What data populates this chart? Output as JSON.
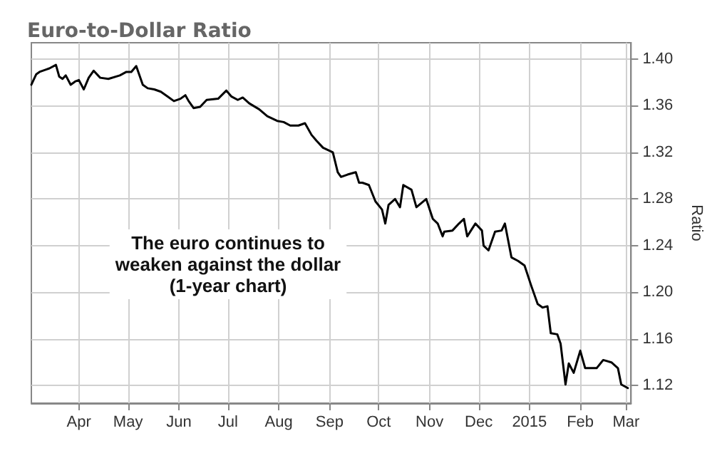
{
  "chart_data": {
    "type": "line",
    "title": "Euro-to-Dollar Ratio",
    "ylabel": "Ratio",
    "annotations": [
      "The euro continues to\nweaken against the dollar\n(1-year chart)"
    ],
    "x": [
      "2014-03-03",
      "2014-03-06",
      "2014-03-08",
      "2014-03-12",
      "2014-03-14",
      "2014-03-18",
      "2014-03-20",
      "2014-03-22",
      "2014-03-24",
      "2014-03-27",
      "2014-03-30",
      "2014-04-01",
      "2014-04-04",
      "2014-04-07",
      "2014-04-10",
      "2014-04-14",
      "2014-04-19",
      "2014-04-26",
      "2014-04-30",
      "2014-05-03",
      "2014-05-06",
      "2014-05-10",
      "2014-05-13",
      "2014-05-17",
      "2014-05-21",
      "2014-05-25",
      "2014-05-29",
      "2014-06-02",
      "2014-06-05",
      "2014-06-07",
      "2014-06-10",
      "2014-06-14",
      "2014-06-18",
      "2014-06-25",
      "2014-06-30",
      "2014-07-03",
      "2014-07-07",
      "2014-07-10",
      "2014-07-14",
      "2014-07-20",
      "2014-07-25",
      "2014-07-31",
      "2014-08-04",
      "2014-08-08",
      "2014-08-13",
      "2014-08-17",
      "2014-08-21",
      "2014-08-24",
      "2014-08-28",
      "2014-08-31",
      "2014-09-03",
      "2014-09-06",
      "2014-09-08",
      "2014-09-12",
      "2014-09-17",
      "2014-09-19",
      "2014-09-21",
      "2014-09-25",
      "2014-09-29",
      "2014-10-03",
      "2014-10-05",
      "2014-10-07",
      "2014-10-11",
      "2014-10-14",
      "2014-10-16",
      "2014-10-21",
      "2014-10-24",
      "2014-10-30",
      "2014-11-03",
      "2014-11-06",
      "2014-11-09",
      "2014-11-10",
      "2014-11-15",
      "2014-11-19",
      "2014-11-22",
      "2014-11-24",
      "2014-11-29",
      "2014-12-03",
      "2014-12-04",
      "2014-12-07",
      "2014-12-11",
      "2014-12-15",
      "2014-12-17",
      "2014-12-21",
      "2014-12-25",
      "2014-12-29",
      "2015-01-02",
      "2015-01-06",
      "2015-01-09",
      "2015-01-12",
      "2015-01-14",
      "2015-01-18",
      "2015-01-20",
      "2015-01-23",
      "2015-01-25",
      "2015-01-28",
      "2015-02-01",
      "2015-02-04",
      "2015-02-11",
      "2015-02-15",
      "2015-02-20",
      "2015-02-24",
      "2015-02-26",
      "2015-03-02"
    ],
    "series": [
      {
        "color": "#000000",
        "values": [
          1.378,
          1.387,
          1.389,
          1.391,
          1.392,
          1.395,
          1.385,
          1.383,
          1.386,
          1.378,
          1.381,
          1.382,
          1.374,
          1.384,
          1.39,
          1.384,
          1.383,
          1.386,
          1.389,
          1.389,
          1.394,
          1.378,
          1.375,
          1.374,
          1.372,
          1.368,
          1.364,
          1.366,
          1.369,
          1.364,
          1.358,
          1.359,
          1.365,
          1.366,
          1.373,
          1.368,
          1.365,
          1.367,
          1.362,
          1.357,
          1.351,
          1.347,
          1.346,
          1.343,
          1.343,
          1.345,
          1.335,
          1.33,
          1.324,
          1.322,
          1.32,
          1.303,
          1.299,
          1.301,
          1.303,
          1.294,
          1.294,
          1.292,
          1.278,
          1.271,
          1.259,
          1.275,
          1.28,
          1.273,
          1.292,
          1.288,
          1.273,
          1.28,
          1.263,
          1.259,
          1.248,
          1.252,
          1.253,
          1.259,
          1.263,
          1.248,
          1.259,
          1.253,
          1.24,
          1.236,
          1.252,
          1.253,
          1.259,
          1.23,
          1.227,
          1.223,
          1.206,
          1.19,
          1.187,
          1.188,
          1.165,
          1.164,
          1.156,
          1.121,
          1.139,
          1.131,
          1.15,
          1.135,
          1.135,
          1.142,
          1.14,
          1.135,
          1.121,
          1.118
        ]
      }
    ],
    "xlim": [
      "2014-03-03",
      "2015-03-04"
    ],
    "xticks": [
      {
        "value": "2014-04-01",
        "label": "Apr"
      },
      {
        "value": "2014-05-01",
        "label": "May"
      },
      {
        "value": "2014-06-01",
        "label": "Jun"
      },
      {
        "value": "2014-07-01",
        "label": "Jul"
      },
      {
        "value": "2014-08-01",
        "label": "Aug"
      },
      {
        "value": "2014-09-01",
        "label": "Sep"
      },
      {
        "value": "2014-10-01",
        "label": "Oct"
      },
      {
        "value": "2014-11-01",
        "label": "Nov"
      },
      {
        "value": "2014-12-01",
        "label": "Dec"
      },
      {
        "value": "2015-01-01",
        "label": "2015"
      },
      {
        "value": "2015-02-01",
        "label": "Feb"
      },
      {
        "value": "2015-03-01",
        "label": "Mar"
      }
    ],
    "ylim": [
      1.105,
      1.414
    ],
    "yticks": [
      {
        "value": 1.12,
        "label": "1.12"
      },
      {
        "value": 1.16,
        "label": "1.16"
      },
      {
        "value": 1.2,
        "label": "1.20"
      },
      {
        "value": 1.24,
        "label": "1.24"
      },
      {
        "value": 1.28,
        "label": "1.28"
      },
      {
        "value": 1.32,
        "label": "1.32"
      },
      {
        "value": 1.36,
        "label": "1.36"
      },
      {
        "value": 1.4,
        "label": "1.40"
      }
    ],
    "grid": true,
    "marker": "none",
    "line_style": "solid"
  }
}
